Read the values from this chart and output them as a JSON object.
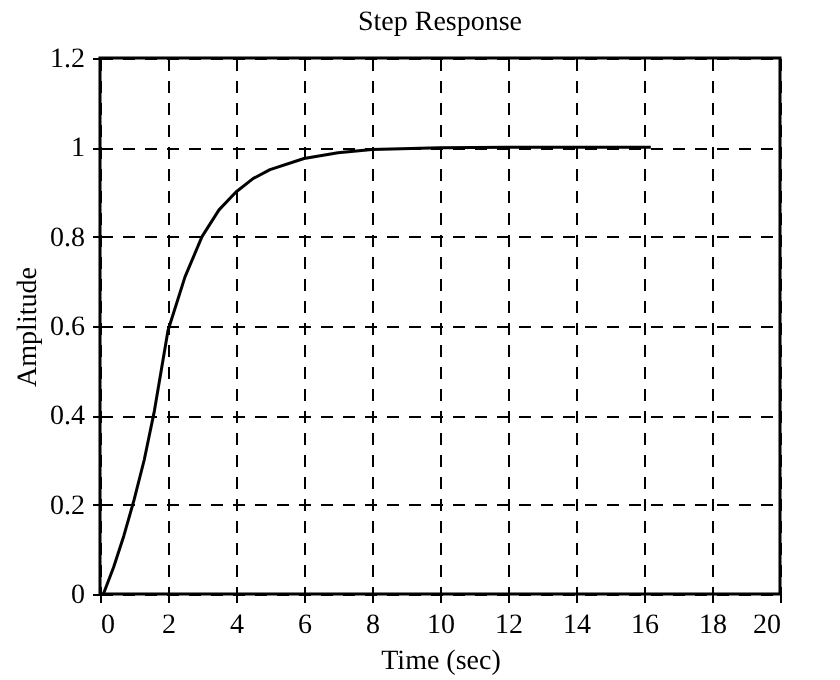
{
  "chart_data": {
    "type": "line",
    "title": "Step Response",
    "xlabel": "Time (sec)",
    "ylabel": "Amplitude",
    "x": [
      0.1,
      0.4,
      0.7,
      1,
      1.3,
      1.6,
      2,
      2.5,
      3,
      3.5,
      4,
      4.5,
      5,
      6,
      7,
      8,
      10,
      12,
      14,
      16.2
    ],
    "series": [
      {
        "color": "#000000",
        "values": [
          0,
          0.06,
          0.13,
          0.21,
          0.3,
          0.41,
          0.59,
          0.71,
          0.8,
          0.86,
          0.9,
          0.93,
          0.95,
          0.975,
          0.988,
          0.995,
          0.999,
          1,
          1,
          1
        ]
      }
    ],
    "xlim": [
      0,
      20
    ],
    "xticks": [
      0,
      2,
      4,
      6,
      8,
      10,
      12,
      14,
      16,
      18,
      20
    ],
    "ylim": [
      0,
      1.2
    ],
    "yticks": [
      0,
      0.2,
      0.4,
      0.6,
      0.8,
      1,
      1.2
    ],
    "grid": true,
    "legend": false,
    "marker": "none",
    "line_style": "solid"
  }
}
